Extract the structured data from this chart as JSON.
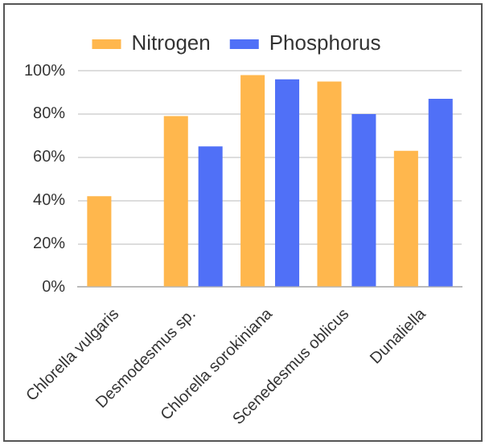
{
  "chart_data": {
    "type": "bar",
    "categories": [
      "Chlorella vulgaris",
      "Desmodesmus sp.",
      "Chlorella sorokiniana",
      "Scenedesmus oblicus",
      "Dunaliella"
    ],
    "series": [
      {
        "name": "Nitrogen",
        "color": "#ffb74d",
        "values": [
          42,
          79,
          98,
          95,
          63
        ]
      },
      {
        "name": "Phosphorus",
        "color": "#5070f7",
        "values": [
          null,
          65,
          96,
          80,
          87
        ]
      }
    ],
    "ylim": [
      0,
      100
    ],
    "yticks": [
      {
        "value": 0,
        "label": "0%"
      },
      {
        "value": 20,
        "label": "20%"
      },
      {
        "value": 40,
        "label": "40%"
      },
      {
        "value": 60,
        "label": "60%"
      },
      {
        "value": 80,
        "label": "80%"
      },
      {
        "value": 100,
        "label": "100%"
      }
    ],
    "grid": "y",
    "legend": "top"
  }
}
